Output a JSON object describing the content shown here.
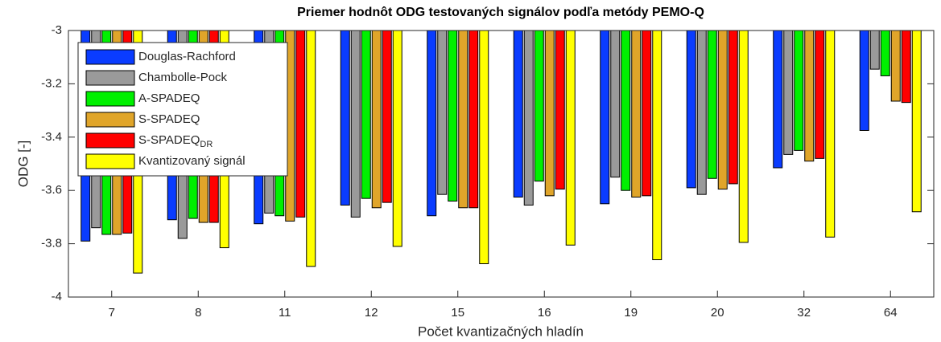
{
  "chart_data": {
    "type": "bar",
    "title": "Priemer hodnôt ODG testovaných signálov podľa metódy PEMO-Q",
    "x_label": "Počet kvantizačných hladín",
    "y_label": "ODG [-]",
    "categories": [
      "7",
      "8",
      "11",
      "12",
      "15",
      "16",
      "19",
      "20",
      "32",
      "64"
    ],
    "series": [
      {
        "name": "Douglas-Rachford",
        "color": "#0a3cff",
        "values": [
          -3.79,
          -3.71,
          -3.725,
          -3.655,
          -3.695,
          -3.625,
          -3.65,
          -3.59,
          -3.515,
          -3.375
        ]
      },
      {
        "name": "Chambolle-Pock",
        "color": "#9a9a9a",
        "values": [
          -3.74,
          -3.78,
          -3.685,
          -3.7,
          -3.615,
          -3.655,
          -3.55,
          -3.615,
          -3.465,
          -3.145
        ]
      },
      {
        "name": "A-SPADEQ",
        "color": "#00f000",
        "values": [
          -3.765,
          -3.705,
          -3.695,
          -3.63,
          -3.64,
          -3.565,
          -3.6,
          -3.555,
          -3.45,
          -3.17
        ]
      },
      {
        "name": "S-SPADEQ",
        "color": "#e0a52a",
        "values": [
          -3.765,
          -3.72,
          -3.715,
          -3.665,
          -3.665,
          -3.62,
          -3.625,
          -3.595,
          -3.49,
          -3.265
        ]
      },
      {
        "name": "S-SPADEQ",
        "subscript": "DR",
        "color": "#ff0000",
        "values": [
          -3.76,
          -3.72,
          -3.7,
          -3.645,
          -3.665,
          -3.595,
          -3.62,
          -3.575,
          -3.48,
          -3.27
        ]
      },
      {
        "name": "Kvantizovaný signál",
        "color": "#ffff00",
        "values": [
          -3.91,
          -3.815,
          -3.885,
          -3.81,
          -3.875,
          -3.805,
          -3.86,
          -3.795,
          -3.775,
          -3.68
        ]
      }
    ],
    "ylim": [
      -4,
      -3
    ],
    "yticks": [
      -4,
      -3.8,
      -3.6,
      -3.4,
      -3.2,
      -3
    ],
    "legend": "upper left"
  }
}
